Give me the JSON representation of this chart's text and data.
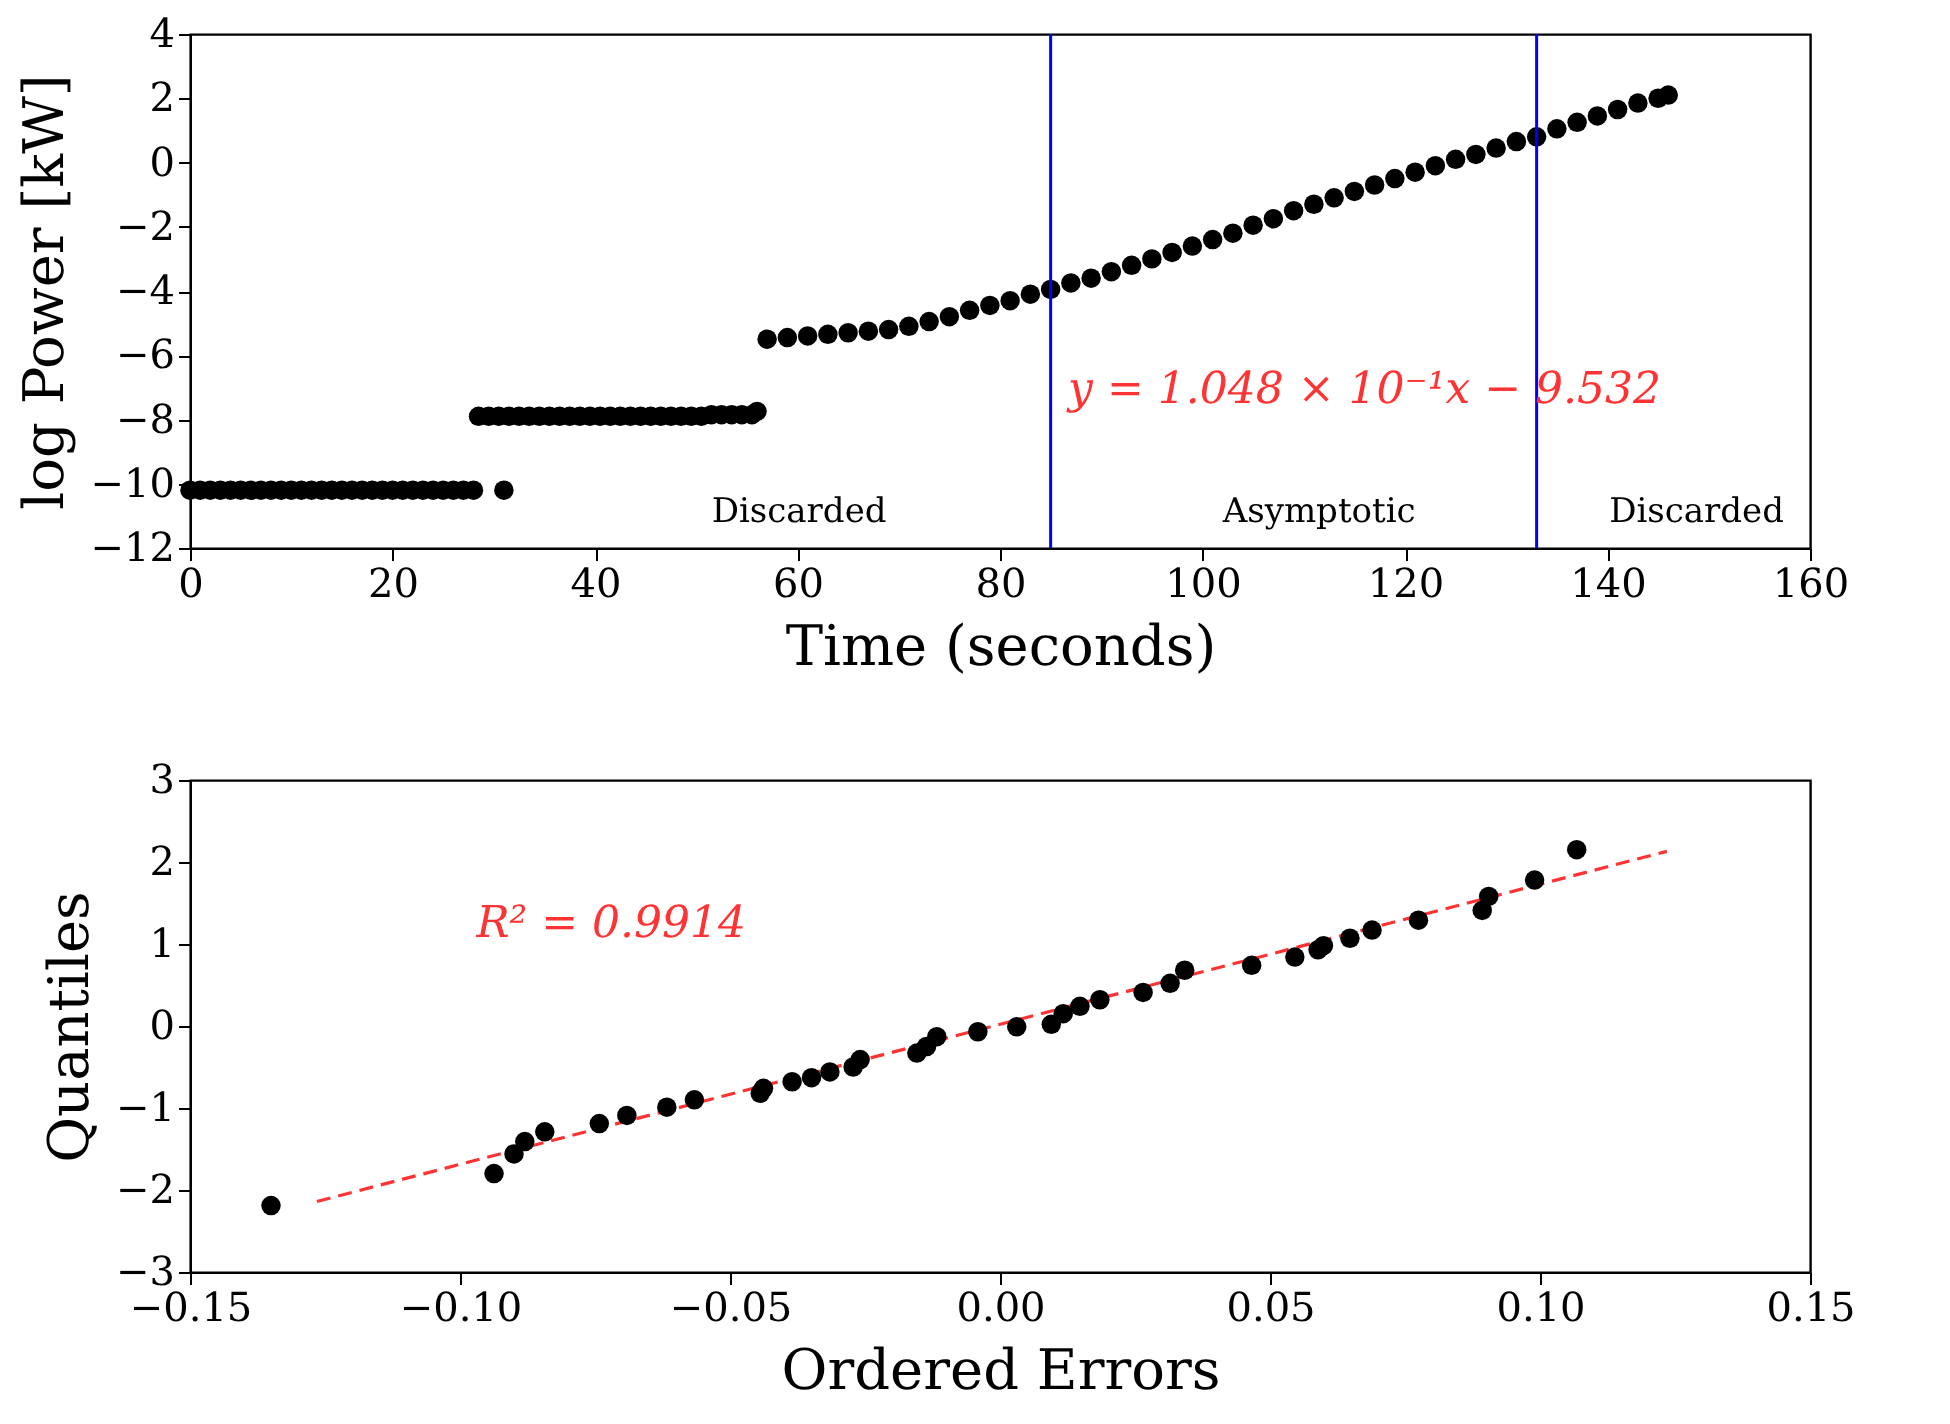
{
  "chart_data": [
    {
      "type": "scatter",
      "xlabel": "Time (seconds)",
      "ylabel": "log Power [kW]",
      "xlim": [
        0,
        160
      ],
      "ylim": [
        -12,
        4
      ],
      "xticks": [
        0,
        20,
        40,
        60,
        80,
        100,
        120,
        140,
        160
      ],
      "yticks": [
        -12,
        -10,
        -8,
        -6,
        -4,
        -2,
        0,
        2,
        4
      ],
      "marker": "circle",
      "series": [
        {
          "type": "scatter",
          "color": "#000000",
          "x": [
            0,
            1,
            2,
            3,
            4,
            5,
            6,
            7,
            8,
            9,
            10,
            11,
            12,
            13,
            14,
            15,
            16,
            17,
            18,
            19,
            20,
            21,
            22,
            23,
            24,
            25,
            26,
            27,
            28,
            28.5,
            29.5,
            30.5,
            31,
            31.5,
            32.5,
            33.5,
            34.5,
            35.5,
            36.5,
            37.5,
            38.5,
            39.5,
            40.5,
            41.5,
            42.5,
            43.5,
            44.5,
            45.5,
            46.5,
            47.5,
            48.5,
            49.5,
            50.5,
            51.5,
            52.5,
            53.5,
            54.5,
            55.5,
            56,
            57,
            59,
            61,
            63,
            65,
            67,
            69,
            71,
            73,
            75,
            77,
            79,
            81,
            83,
            85,
            87,
            89,
            91,
            93,
            95,
            97,
            99,
            101,
            103,
            105,
            107,
            109,
            111,
            113,
            115,
            117,
            119,
            121,
            123,
            125,
            127,
            129,
            131,
            133,
            135,
            137,
            139,
            141,
            143,
            145,
            146
          ],
          "values": [
            -10.2,
            -10.2,
            -10.2,
            -10.2,
            -10.2,
            -10.2,
            -10.2,
            -10.2,
            -10.2,
            -10.2,
            -10.2,
            -10.2,
            -10.2,
            -10.2,
            -10.2,
            -10.2,
            -10.2,
            -10.2,
            -10.2,
            -10.2,
            -10.2,
            -10.2,
            -10.2,
            -10.2,
            -10.2,
            -10.2,
            -10.2,
            -10.2,
            -10.2,
            -7.9,
            -7.9,
            -7.9,
            -10.2,
            -7.9,
            -7.9,
            -7.9,
            -7.9,
            -7.9,
            -7.9,
            -7.9,
            -7.9,
            -7.9,
            -7.9,
            -7.9,
            -7.9,
            -7.9,
            -7.9,
            -7.9,
            -7.9,
            -7.9,
            -7.9,
            -7.9,
            -7.9,
            -7.85,
            -7.85,
            -7.85,
            -7.85,
            -7.85,
            -7.75,
            -5.5,
            -5.45,
            -5.4,
            -5.35,
            -5.3,
            -5.25,
            -5.2,
            -5.1,
            -4.95,
            -4.8,
            -4.6,
            -4.45,
            -4.3,
            -4.1,
            -3.95,
            -3.75,
            -3.6,
            -3.4,
            -3.2,
            -3.0,
            -2.8,
            -2.6,
            -2.4,
            -2.2,
            -1.95,
            -1.75,
            -1.5,
            -1.3,
            -1.1,
            -0.9,
            -0.7,
            -0.5,
            -0.3,
            -0.1,
            0.1,
            0.25,
            0.45,
            0.65,
            0.8,
            1.05,
            1.25,
            1.45,
            1.65,
            1.85,
            2.0,
            2.1
          ]
        }
      ],
      "ref_lines": [
        {
          "axis": "x",
          "value": 85,
          "color": "#0000ff"
        },
        {
          "axis": "x",
          "value": 133,
          "color": "#0000ff"
        }
      ],
      "annotations": [
        "y = 1.048 × 10⁻¹x − 9.532",
        "Discarded",
        "Asymptotic",
        "Discarded"
      ]
    },
    {
      "type": "scatter",
      "xlabel": "Ordered Errors",
      "ylabel": "Quantiles",
      "xlim": [
        -0.15,
        0.15
      ],
      "ylim": [
        -3,
        3
      ],
      "xticks": [
        {
          "value": -0.15,
          "label": "−0.15"
        },
        {
          "value": -0.1,
          "label": "−0.10"
        },
        {
          "value": -0.05,
          "label": "−0.05"
        },
        {
          "value": 0,
          "label": "0.00"
        },
        {
          "value": 0.05,
          "label": "0.05"
        },
        {
          "value": 0.1,
          "label": "0.10"
        },
        {
          "value": 0.15,
          "label": "0.15"
        }
      ],
      "yticks": [
        -3,
        -2,
        -1,
        0,
        1,
        2,
        3
      ],
      "series": [
        {
          "type": "line",
          "color": "#ff3333",
          "line_style": "dashed",
          "x": [
            -0.1265,
            0.1235
          ],
          "values": [
            -2.14,
            2.13
          ]
        },
        {
          "type": "scatter",
          "color": "#000000",
          "marker": "circle",
          "x": [
            -0.135,
            -0.0937,
            -0.09,
            -0.088,
            -0.0843,
            -0.0742,
            -0.0691,
            -0.0617,
            -0.0566,
            -0.0444,
            -0.0438,
            -0.0385,
            -0.0349,
            -0.0315,
            -0.0272,
            -0.0259,
            -0.0154,
            -0.0136,
            -0.0117,
            -0.0041,
            0.0031,
            0.0095,
            0.0117,
            0.0148,
            0.0185,
            0.0265,
            0.0315,
            0.0342,
            0.0466,
            0.0546,
            0.0589,
            0.0599,
            0.0648,
            0.0689,
            0.0775,
            0.0893,
            0.0905,
            0.099,
            0.1068
          ],
          "values": [
            -2.19,
            -1.8,
            -1.56,
            -1.41,
            -1.29,
            -1.19,
            -1.09,
            -0.99,
            -0.9,
            -0.82,
            -0.76,
            -0.68,
            -0.63,
            -0.56,
            -0.5,
            -0.41,
            -0.33,
            -0.25,
            -0.13,
            -0.07,
            -0.01,
            0.02,
            0.15,
            0.24,
            0.32,
            0.41,
            0.52,
            0.68,
            0.74,
            0.84,
            0.93,
            0.98,
            1.07,
            1.17,
            1.29,
            1.41,
            1.58,
            1.78,
            2.15
          ]
        }
      ],
      "annotations": [
        "R² = 0.9914"
      ]
    }
  ]
}
